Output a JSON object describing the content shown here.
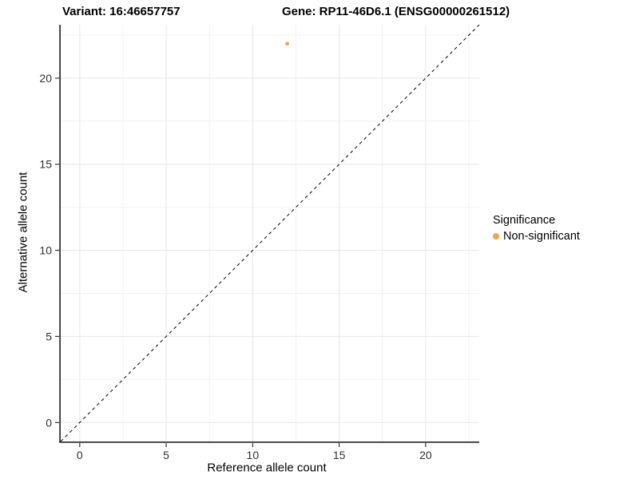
{
  "figure": {
    "title_left": "Variant: 16:46657757",
    "title_right": "Gene: RP11-46D6.1 (ENSG00000261512)"
  },
  "chart_data": {
    "type": "scatter",
    "title": "Variant: 16:46657757   Gene: RP11-46D6.1 (ENSG00000261512)",
    "xlabel": "Reference allele count",
    "ylabel": "Alternative allele count",
    "xlim": [
      -1.1,
      23.1
    ],
    "ylim": [
      -1.1,
      23.1
    ],
    "x_ticks": [
      0,
      5,
      10,
      15,
      20
    ],
    "y_ticks": [
      0,
      5,
      10,
      15,
      20
    ],
    "x_minor_ticks": [
      2.5,
      7.5,
      12.5,
      17.5,
      22.5
    ],
    "y_minor_ticks": [
      2.5,
      7.5,
      12.5,
      17.5,
      22.5
    ],
    "grid": true,
    "reference_line": {
      "kind": "identity",
      "style": "dashed",
      "color": "#000000"
    },
    "series": [
      {
        "name": "Non-significant",
        "marker": "circle",
        "color": "#F9A242",
        "point_radius": 2.4,
        "points": [
          {
            "x": 12,
            "y": 22
          }
        ]
      }
    ],
    "legend": {
      "title": "Significance",
      "position": "right",
      "entries": [
        {
          "label": "Non-significant",
          "color": "#F9A242",
          "marker": "circle"
        }
      ]
    }
  },
  "colors": {
    "background": "#ffffff",
    "grid_major": "#E6E6E6",
    "grid_minor": "#F2F2F2",
    "axis_line": "#333333",
    "tick_label": "#303030",
    "point_orange": "#F9A242"
  }
}
